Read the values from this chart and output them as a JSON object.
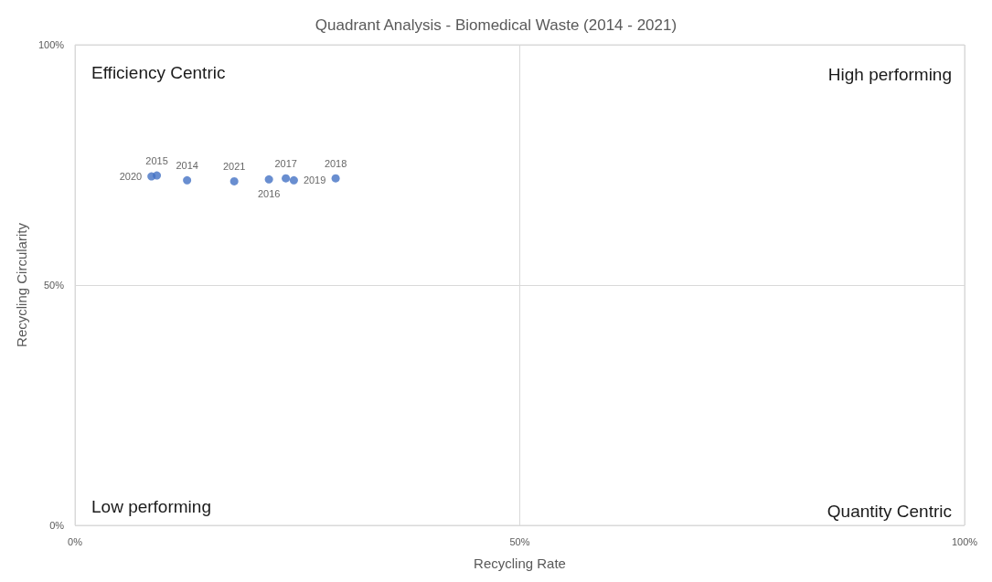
{
  "chart_data": {
    "type": "scatter",
    "title": "Quadrant Analysis - Biomedical Waste (2014 - 2021)",
    "xlabel": "Recycling Rate",
    "ylabel": "Recycling Circularity",
    "series": [
      {
        "name": "2014",
        "color": "#4472c4",
        "x": [
          12.6
        ],
        "values": [
          71.8
        ]
      },
      {
        "name": "2015",
        "color": "#4472c4",
        "x": [
          9.2
        ],
        "values": [
          72.8
        ]
      },
      {
        "name": "2016",
        "color": "#4472c4",
        "x": [
          21.8
        ],
        "values": [
          72.0
        ]
      },
      {
        "name": "2017",
        "color": "#4472c4",
        "x": [
          23.7
        ],
        "values": [
          72.2
        ]
      },
      {
        "name": "2018",
        "color": "#4472c4",
        "x": [
          29.3
        ],
        "values": [
          72.2
        ]
      },
      {
        "name": "2019",
        "color": "#4472c4",
        "x": [
          24.6
        ],
        "values": [
          71.8
        ]
      },
      {
        "name": "2020",
        "color": "#4472c4",
        "x": [
          8.6
        ],
        "values": [
          72.6
        ]
      },
      {
        "name": "2021",
        "color": "#4472c4",
        "x": [
          17.9
        ],
        "values": [
          71.6
        ]
      }
    ],
    "marker": "circle",
    "xlim": [
      0,
      100
    ],
    "ylim": [
      0,
      100
    ],
    "xticks": [
      {
        "value": 0,
        "label": "0%"
      },
      {
        "value": 50,
        "label": "50%"
      },
      {
        "value": 100,
        "label": "100%"
      }
    ],
    "yticks": [
      {
        "value": 0,
        "label": "0%"
      },
      {
        "value": 50,
        "label": "50%"
      },
      {
        "value": 100,
        "label": "100%"
      }
    ],
    "grid": true,
    "annotations": [
      "Efficiency Centric",
      "High performing",
      "Low performing",
      "Quantity Centric"
    ]
  }
}
